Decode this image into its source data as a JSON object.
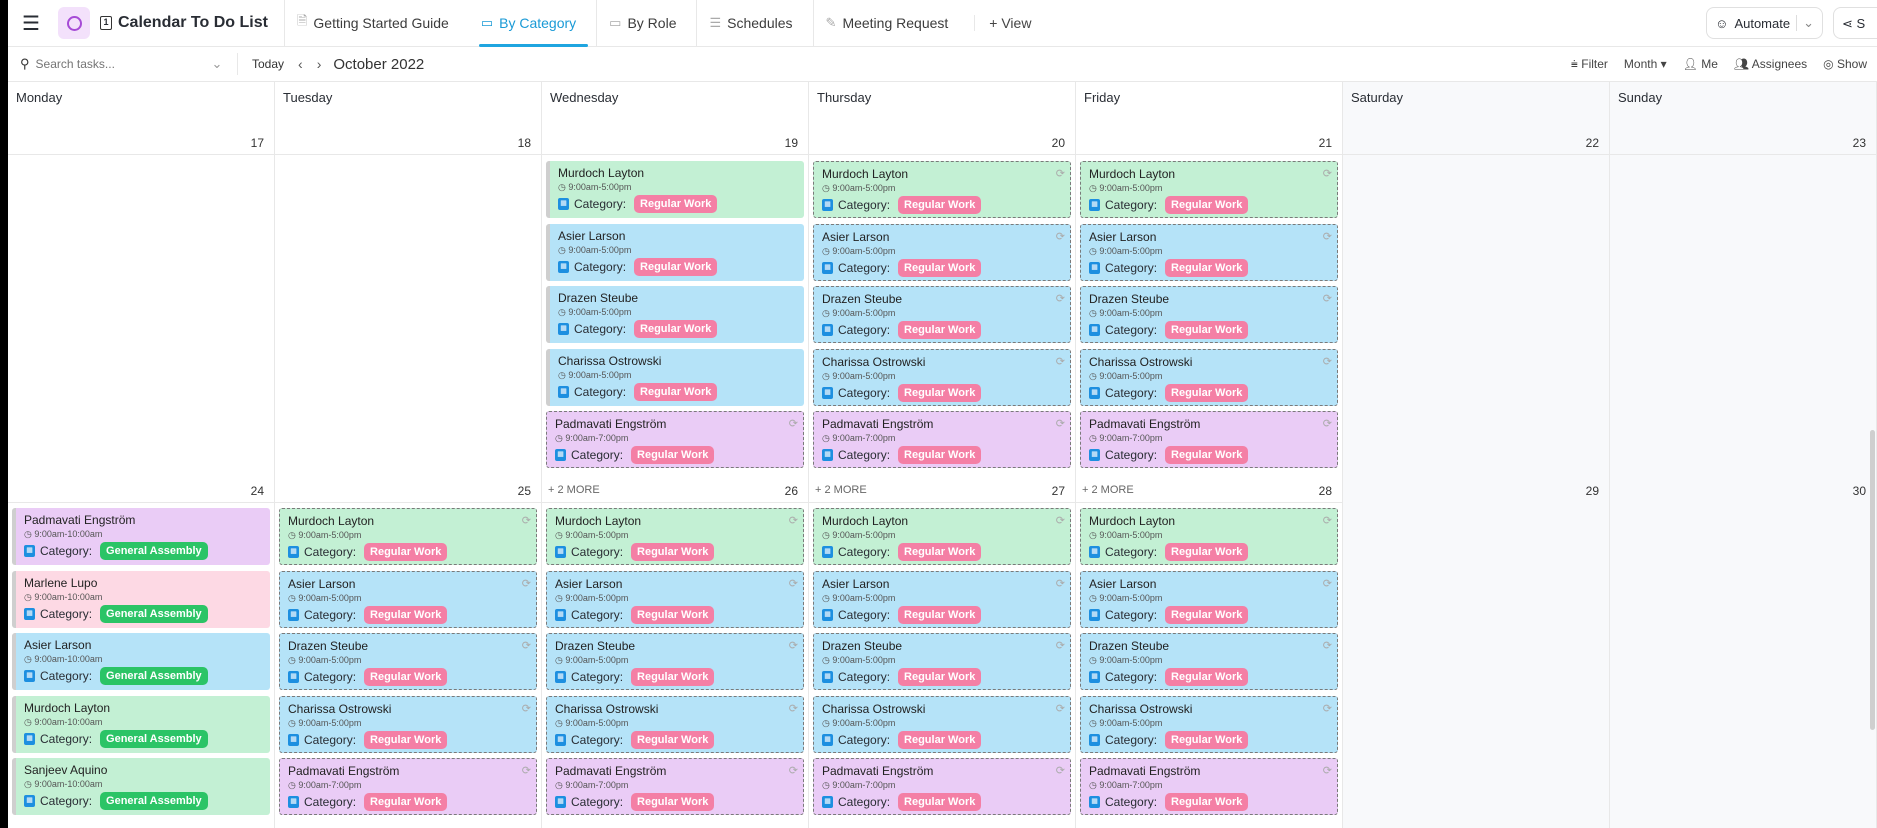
{
  "app": {
    "title": "Calendar To Do List",
    "tabs": [
      {
        "label": "Getting Started Guide",
        "icon": "doc-icon"
      },
      {
        "label": "By Category",
        "icon": "calendar-icon",
        "active": true
      },
      {
        "label": "By Role",
        "icon": "calendar-icon"
      },
      {
        "label": "Schedules",
        "icon": "list-icon"
      },
      {
        "label": "Meeting Request",
        "icon": "form-icon"
      }
    ],
    "add_view": "+ View",
    "automate": "Automate",
    "share": "S"
  },
  "toolbar": {
    "search_placeholder": "Search tasks...",
    "today": "Today",
    "month_label": "October 2022",
    "filter": "Filter",
    "view_mode": "Month ▾",
    "me": "Me",
    "assignees": "Assignees",
    "show": "Show"
  },
  "days": [
    "Monday",
    "Tuesday",
    "Wednesday",
    "Thursday",
    "Friday",
    "Saturday",
    "Sunday"
  ],
  "colors": {
    "green": "#c3f0d4",
    "blue": "#b5e3f8",
    "purple": "#eaccf6",
    "pink": "#fdd9e4",
    "regular_work": "#f47fa5",
    "general_assembly": "#2bc466"
  },
  "category_label": "Category:",
  "weeks": [
    {
      "numbers": [
        "17",
        "18",
        "19",
        "20",
        "21",
        "22",
        "23"
      ],
      "next_numbers": [
        "24",
        "25",
        "26",
        "27",
        "28",
        "29",
        "30"
      ],
      "more": [
        "",
        "",
        "+ 2 MORE",
        "+ 2 MORE",
        "+ 2 MORE",
        "",
        ""
      ],
      "days": [
        [],
        [],
        [
          {
            "name": "Murdoch Layton",
            "time": "9:00am-5:00pm",
            "category": "Regular Work",
            "color": "green",
            "recurring": false
          },
          {
            "name": "Asier Larson",
            "time": "9:00am-5:00pm",
            "category": "Regular Work",
            "color": "blue",
            "recurring": false
          },
          {
            "name": "Drazen Steube",
            "time": "9:00am-5:00pm",
            "category": "Regular Work",
            "color": "blue",
            "recurring": false
          },
          {
            "name": "Charissa Ostrowski",
            "time": "9:00am-5:00pm",
            "category": "Regular Work",
            "color": "blue",
            "recurring": false
          },
          {
            "name": "Padmavati Engström",
            "time": "9:00am-7:00pm",
            "category": "Regular Work",
            "color": "purple",
            "recurring": true
          }
        ],
        [
          {
            "name": "Murdoch Layton",
            "time": "9:00am-5:00pm",
            "category": "Regular Work",
            "color": "green",
            "recurring": true
          },
          {
            "name": "Asier Larson",
            "time": "9:00am-5:00pm",
            "category": "Regular Work",
            "color": "blue",
            "recurring": true
          },
          {
            "name": "Drazen Steube",
            "time": "9:00am-5:00pm",
            "category": "Regular Work",
            "color": "blue",
            "recurring": true
          },
          {
            "name": "Charissa Ostrowski",
            "time": "9:00am-5:00pm",
            "category": "Regular Work",
            "color": "blue",
            "recurring": true
          },
          {
            "name": "Padmavati Engström",
            "time": "9:00am-7:00pm",
            "category": "Regular Work",
            "color": "purple",
            "recurring": true
          }
        ],
        [
          {
            "name": "Murdoch Layton",
            "time": "9:00am-5:00pm",
            "category": "Regular Work",
            "color": "green",
            "recurring": true
          },
          {
            "name": "Asier Larson",
            "time": "9:00am-5:00pm",
            "category": "Regular Work",
            "color": "blue",
            "recurring": true
          },
          {
            "name": "Drazen Steube",
            "time": "9:00am-5:00pm",
            "category": "Regular Work",
            "color": "blue",
            "recurring": true
          },
          {
            "name": "Charissa Ostrowski",
            "time": "9:00am-5:00pm",
            "category": "Regular Work",
            "color": "blue",
            "recurring": true
          },
          {
            "name": "Padmavati Engström",
            "time": "9:00am-7:00pm",
            "category": "Regular Work",
            "color": "purple",
            "recurring": true
          }
        ],
        [],
        []
      ]
    },
    {
      "days": [
        [
          {
            "name": "Padmavati Engström",
            "time": "9:00am-10:00am",
            "category": "General Assembly",
            "color": "purple",
            "recurring": false
          },
          {
            "name": "Marlene Lupo",
            "time": "9:00am-10:00am",
            "category": "General Assembly",
            "color": "pink",
            "recurring": false
          },
          {
            "name": "Asier Larson",
            "time": "9:00am-10:00am",
            "category": "General Assembly",
            "color": "blue",
            "recurring": false
          },
          {
            "name": "Murdoch Layton",
            "time": "9:00am-10:00am",
            "category": "General Assembly",
            "color": "green",
            "recurring": false
          },
          {
            "name": "Sanjeev Aquino",
            "time": "9:00am-10:00am",
            "category": "General Assembly",
            "color": "green",
            "recurring": false
          }
        ],
        [
          {
            "name": "Murdoch Layton",
            "time": "9:00am-5:00pm",
            "category": "Regular Work",
            "color": "green",
            "recurring": true
          },
          {
            "name": "Asier Larson",
            "time": "9:00am-5:00pm",
            "category": "Regular Work",
            "color": "blue",
            "recurring": true
          },
          {
            "name": "Drazen Steube",
            "time": "9:00am-5:00pm",
            "category": "Regular Work",
            "color": "blue",
            "recurring": true
          },
          {
            "name": "Charissa Ostrowski",
            "time": "9:00am-5:00pm",
            "category": "Regular Work",
            "color": "blue",
            "recurring": true
          },
          {
            "name": "Padmavati Engström",
            "time": "9:00am-7:00pm",
            "category": "Regular Work",
            "color": "purple",
            "recurring": true
          }
        ],
        [
          {
            "name": "Murdoch Layton",
            "time": "9:00am-5:00pm",
            "category": "Regular Work",
            "color": "green",
            "recurring": true
          },
          {
            "name": "Asier Larson",
            "time": "9:00am-5:00pm",
            "category": "Regular Work",
            "color": "blue",
            "recurring": true
          },
          {
            "name": "Drazen Steube",
            "time": "9:00am-5:00pm",
            "category": "Regular Work",
            "color": "blue",
            "recurring": true
          },
          {
            "name": "Charissa Ostrowski",
            "time": "9:00am-5:00pm",
            "category": "Regular Work",
            "color": "blue",
            "recurring": true
          },
          {
            "name": "Padmavati Engström",
            "time": "9:00am-7:00pm",
            "category": "Regular Work",
            "color": "purple",
            "recurring": true
          }
        ],
        [
          {
            "name": "Murdoch Layton",
            "time": "9:00am-5:00pm",
            "category": "Regular Work",
            "color": "green",
            "recurring": true
          },
          {
            "name": "Asier Larson",
            "time": "9:00am-5:00pm",
            "category": "Regular Work",
            "color": "blue",
            "recurring": true
          },
          {
            "name": "Drazen Steube",
            "time": "9:00am-5:00pm",
            "category": "Regular Work",
            "color": "blue",
            "recurring": true
          },
          {
            "name": "Charissa Ostrowski",
            "time": "9:00am-5:00pm",
            "category": "Regular Work",
            "color": "blue",
            "recurring": true
          },
          {
            "name": "Padmavati Engström",
            "time": "9:00am-7:00pm",
            "category": "Regular Work",
            "color": "purple",
            "recurring": true
          }
        ],
        [
          {
            "name": "Murdoch Layton",
            "time": "9:00am-5:00pm",
            "category": "Regular Work",
            "color": "green",
            "recurring": true
          },
          {
            "name": "Asier Larson",
            "time": "9:00am-5:00pm",
            "category": "Regular Work",
            "color": "blue",
            "recurring": true
          },
          {
            "name": "Drazen Steube",
            "time": "9:00am-5:00pm",
            "category": "Regular Work",
            "color": "blue",
            "recurring": true
          },
          {
            "name": "Charissa Ostrowski",
            "time": "9:00am-5:00pm",
            "category": "Regular Work",
            "color": "blue",
            "recurring": true
          },
          {
            "name": "Padmavati Engström",
            "time": "9:00am-7:00pm",
            "category": "Regular Work",
            "color": "purple",
            "recurring": true
          }
        ],
        [],
        []
      ]
    }
  ]
}
